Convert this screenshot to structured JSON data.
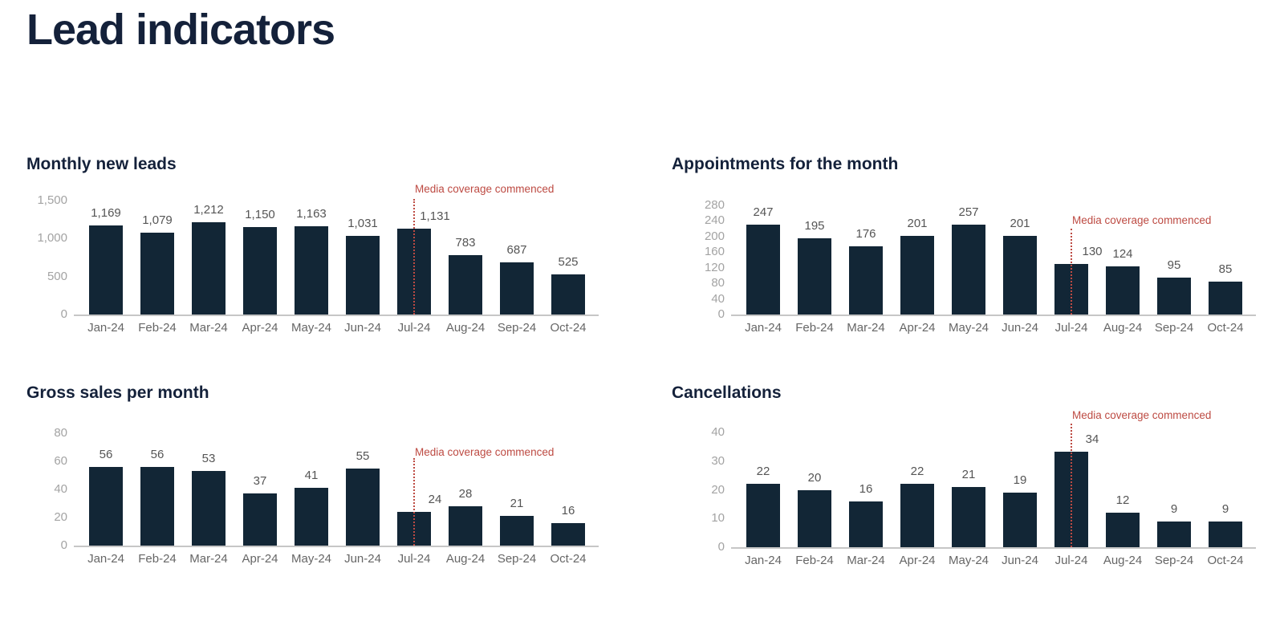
{
  "page": {
    "title": "Lead indicators"
  },
  "colors": {
    "bar": "#122636",
    "navy": "#14213a",
    "annotation_red": "#bd4a42",
    "y_tick_gray": "#a3a3a3",
    "data_label_gray": "#555555",
    "x_label_gray": "#666666",
    "baseline_gray": "#c6c6c6"
  },
  "chart_data": [
    {
      "type": "bar",
      "title": "Monthly new leads",
      "categories": [
        "Jan-24",
        "Feb-24",
        "Mar-24",
        "Apr-24",
        "May-24",
        "Jun-24",
        "Jul-24",
        "Aug-24",
        "Sep-24",
        "Oct-24"
      ],
      "values": [
        1169,
        1079,
        1212,
        1150,
        1163,
        1031,
        1131,
        783,
        687,
        525
      ],
      "value_labels": [
        "1,169",
        "1,079",
        "1,212",
        "1,150",
        "1,163",
        "1,031",
        "1,131",
        "783",
        "687",
        "525"
      ],
      "xlabel": "",
      "ylabel": "",
      "ylim": [
        0,
        1500
      ],
      "yticks": [
        0,
        500,
        1000,
        1500
      ],
      "ytick_labels": [
        "0",
        "500",
        "1,000",
        "1,500"
      ],
      "grid": false,
      "legend": "none",
      "annotation": {
        "text": "Media coverage commenced",
        "at_category": "Jul-24"
      }
    },
    {
      "type": "bar",
      "title": "Appointments for the month",
      "categories": [
        "Jan-24",
        "Feb-24",
        "Mar-24",
        "Apr-24",
        "May-24",
        "Jun-24",
        "Jul-24",
        "Aug-24",
        "Sep-24",
        "Oct-24"
      ],
      "values": [
        247,
        195,
        176,
        201,
        257,
        201,
        130,
        124,
        95,
        85
      ],
      "value_labels": [
        "247",
        "195",
        "176",
        "201",
        "257",
        "201",
        "130",
        "124",
        "95",
        "85"
      ],
      "xlabel": "",
      "ylabel": "",
      "ylim": [
        0,
        280
      ],
      "yticks": [
        0,
        40,
        80,
        120,
        160,
        200,
        240,
        280
      ],
      "ytick_labels": [
        "0",
        "40",
        "80",
        "120",
        "160",
        "200",
        "240",
        "280"
      ],
      "grid": false,
      "legend": "none",
      "annotation": {
        "text": "Media coverage commenced",
        "at_category": "Jul-24"
      }
    },
    {
      "type": "bar",
      "title": "Gross sales per month",
      "categories": [
        "Jan-24",
        "Feb-24",
        "Mar-24",
        "Apr-24",
        "May-24",
        "Jun-24",
        "Jul-24",
        "Aug-24",
        "Sep-24",
        "Oct-24"
      ],
      "values": [
        56,
        56,
        53,
        37,
        41,
        55,
        24,
        28,
        21,
        16
      ],
      "value_labels": [
        "56",
        "56",
        "53",
        "37",
        "41",
        "55",
        "24",
        "28",
        "21",
        "16"
      ],
      "xlabel": "",
      "ylabel": "",
      "ylim": [
        0,
        80
      ],
      "yticks": [
        0,
        20,
        40,
        60,
        80
      ],
      "ytick_labels": [
        "0",
        "20",
        "40",
        "60",
        "80"
      ],
      "grid": false,
      "legend": "none",
      "annotation": {
        "text": "Media coverage commenced",
        "at_category": "Jul-24"
      }
    },
    {
      "type": "bar",
      "title": "Cancellations",
      "categories": [
        "Jan-24",
        "Feb-24",
        "Mar-24",
        "Apr-24",
        "May-24",
        "Jun-24",
        "Jul-24",
        "Aug-24",
        "Sep-24",
        "Oct-24"
      ],
      "values": [
        22,
        20,
        16,
        22,
        21,
        19,
        34,
        12,
        9,
        9
      ],
      "value_labels": [
        "22",
        "20",
        "16",
        "22",
        "21",
        "19",
        "34",
        "12",
        "9",
        "9"
      ],
      "xlabel": "",
      "ylabel": "",
      "ylim": [
        0,
        40
      ],
      "yticks": [
        0,
        10,
        20,
        30,
        40
      ],
      "ytick_labels": [
        "0",
        "10",
        "20",
        "30",
        "40"
      ],
      "grid": false,
      "legend": "none",
      "annotation": {
        "text": "Media coverage commenced",
        "at_category": "Jul-24"
      }
    }
  ]
}
